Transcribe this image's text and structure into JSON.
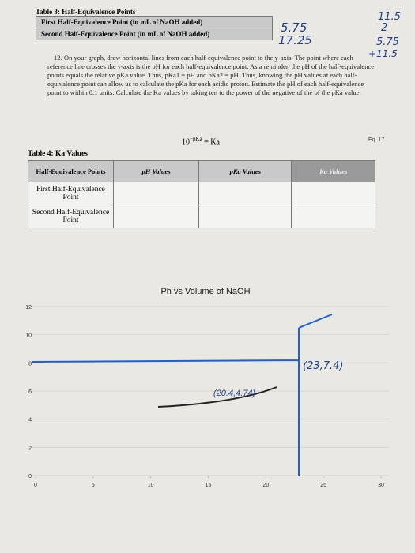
{
  "table3": {
    "title": "Table 3: Half-Equivalence Points",
    "rows": [
      {
        "label": "First Half-Equivalence Point (in mL of NaOH added)",
        "handwritten": "5.75"
      },
      {
        "label": "Second Half-Equivalence Point (in mL of NaOH added)",
        "handwritten": "17.25"
      }
    ]
  },
  "margin_notes": [
    "11.5",
    "2",
    "5.75",
    "+11.5"
  ],
  "instruction": {
    "number": "12.",
    "text": "On your graph, draw horizontal lines from each half-equivalence point to the y-axis. The point where each reference line crosses the y-axis is the pH for each half-equivalence point. As a reminder, the pH of the half-equivalence points equals the relative pKa value. Thus, pKa1 = pH and pKa2 = pH. Thus, knowing the pH values at each half-equivalence point can allow us to calculate the pKa for each acidic proton. Estimate the pH of each half-equivalence point to within 0.1 units. Calculate the Ka values by taking ten to the power of the negative of the of the pKa value:"
  },
  "equation": {
    "base": "10",
    "exponent": "−pKa",
    "rhs": " = Ka",
    "label": "Eq. 17"
  },
  "table4": {
    "title": "Table 4: Ka Values",
    "header": [
      "Half-Equivalence Points",
      "pH Values",
      "pKa Values",
      "Ka Values"
    ],
    "rows": [
      [
        "First Half-Equivalence Point"
      ],
      [
        "Second Half-Equivalence Point"
      ]
    ]
  },
  "graph": {
    "title": "Ph vs Volume of NaOH",
    "xlim": [
      0,
      30
    ],
    "ylim": [
      0,
      12
    ],
    "xticks": [
      0,
      5,
      10,
      15,
      20,
      25,
      30
    ],
    "yticks": [
      0,
      2,
      4,
      6,
      8,
      10,
      12
    ],
    "annotations": [
      "(23,7.4)",
      "(20.4,4.74)"
    ]
  }
}
